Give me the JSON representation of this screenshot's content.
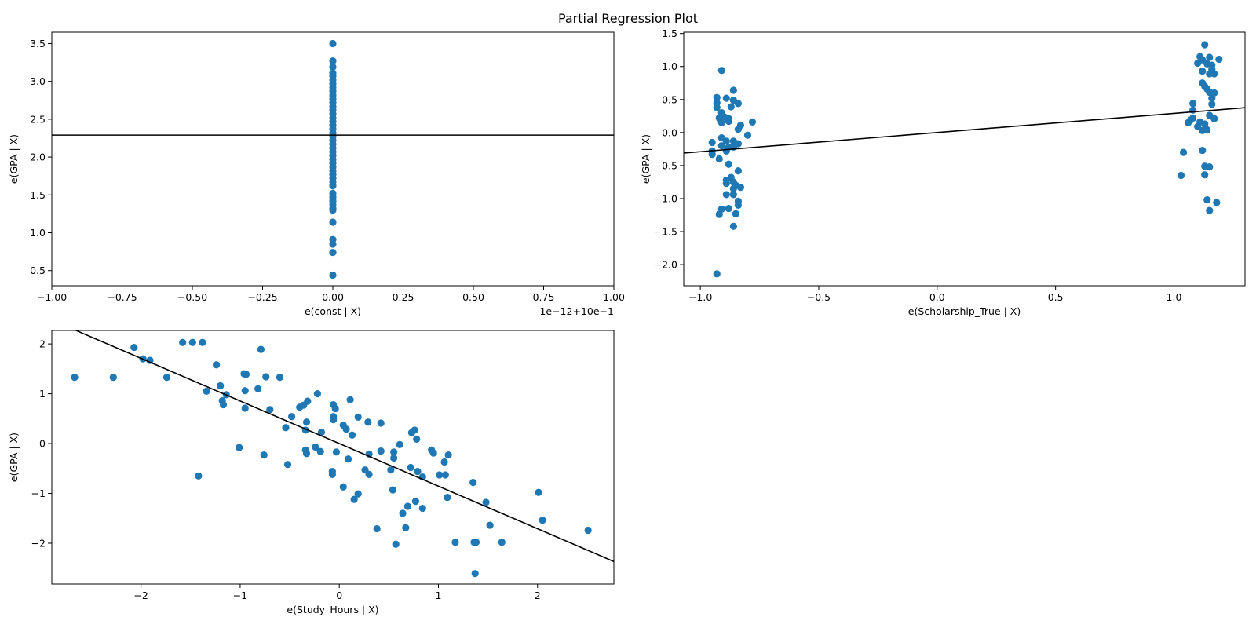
{
  "figure": {
    "title": "Partial Regression Plot"
  },
  "colors": {
    "point": "#1f77b4",
    "line": "#000000"
  },
  "chart_data": [
    {
      "type": "scatter",
      "xlabel": "e(const | X)",
      "ylabel": "e(GPA | X)",
      "offset_text": "1e−12+10e−1",
      "xlim": [
        -1.0,
        1.0
      ],
      "ylim": [
        0.3,
        3.65
      ],
      "xticks": [
        -1.0,
        -0.75,
        -0.5,
        -0.25,
        0.0,
        0.25,
        0.5,
        0.75,
        1.0
      ],
      "xticklabels": [
        "−1.00",
        "−0.75",
        "−0.50",
        "−0.25",
        "0.00",
        "0.25",
        "0.50",
        "0.75",
        "1.00"
      ],
      "yticks": [
        0.5,
        1.0,
        1.5,
        2.0,
        2.5,
        3.0,
        3.5
      ],
      "yticklabels": [
        "0.5",
        "1.0",
        "1.5",
        "2.0",
        "2.5",
        "3.0",
        "3.5"
      ],
      "fit_line": {
        "intercept": 2.29,
        "slope": 0.0
      },
      "points": [
        [
          0,
          3.5
        ],
        [
          0,
          3.27
        ],
        [
          0,
          3.19
        ],
        [
          0,
          3.11
        ],
        [
          0,
          3.07
        ],
        [
          0,
          3.02
        ],
        [
          0,
          2.97
        ],
        [
          0,
          2.92
        ],
        [
          0,
          2.87
        ],
        [
          0,
          2.82
        ],
        [
          0,
          2.77
        ],
        [
          0,
          2.72
        ],
        [
          0,
          2.67
        ],
        [
          0,
          2.62
        ],
        [
          0,
          2.57
        ],
        [
          0,
          2.52
        ],
        [
          0,
          2.47
        ],
        [
          0,
          2.42
        ],
        [
          0,
          2.37
        ],
        [
          0,
          2.32
        ],
        [
          0,
          2.27
        ],
        [
          0,
          2.22
        ],
        [
          0,
          2.17
        ],
        [
          0,
          2.12
        ],
        [
          0,
          2.07
        ],
        [
          0,
          2.02
        ],
        [
          0,
          1.97
        ],
        [
          0,
          1.92
        ],
        [
          0,
          1.87
        ],
        [
          0,
          1.82
        ],
        [
          0,
          1.77
        ],
        [
          0,
          1.72
        ],
        [
          0,
          1.67
        ],
        [
          0,
          1.62
        ],
        [
          0,
          1.52
        ],
        [
          0,
          1.47
        ],
        [
          0,
          1.42
        ],
        [
          0,
          1.37
        ],
        [
          0,
          1.32
        ],
        [
          0,
          1.3
        ],
        [
          0,
          1.14
        ],
        [
          0,
          0.91
        ],
        [
          0,
          0.85
        ],
        [
          0,
          0.74
        ],
        [
          0,
          0.44
        ]
      ]
    },
    {
      "type": "scatter",
      "xlabel": "e(Scholarship_True | X)",
      "ylabel": "e(GPA | X)",
      "xlim": [
        -1.07,
        1.3
      ],
      "ylim": [
        -2.32,
        1.52
      ],
      "xticks": [
        -1.0,
        -0.5,
        0.0,
        0.5,
        1.0
      ],
      "xticklabels": [
        "−1.0",
        "−0.5",
        "0.0",
        "0.5",
        "1.0"
      ],
      "yticks": [
        -2.0,
        -1.5,
        -1.0,
        -0.5,
        0.0,
        0.5,
        1.0,
        1.5
      ],
      "yticklabels": [
        "−2.0",
        "−1.5",
        "−1.0",
        "−0.5",
        "0.0",
        "0.5",
        "1.0",
        "1.5"
      ],
      "fit_line": {
        "intercept": 0.0,
        "slope": 0.29
      },
      "points": [
        [
          -0.91,
          0.94
        ],
        [
          -0.86,
          0.64
        ],
        [
          -0.93,
          0.53
        ],
        [
          -0.89,
          0.52
        ],
        [
          -0.86,
          0.49
        ],
        [
          -0.84,
          0.44
        ],
        [
          -0.93,
          0.45
        ],
        [
          -0.87,
          0.39
        ],
        [
          -0.93,
          0.38
        ],
        [
          -0.91,
          0.3
        ],
        [
          -0.92,
          0.22
        ],
        [
          -0.9,
          0.24
        ],
        [
          -0.88,
          0.21
        ],
        [
          -0.91,
          0.15
        ],
        [
          -0.88,
          0.17
        ],
        [
          -0.78,
          0.16
        ],
        [
          -0.83,
          0.11
        ],
        [
          -0.84,
          0.05
        ],
        [
          -0.8,
          -0.04
        ],
        [
          -0.91,
          -0.08
        ],
        [
          -0.89,
          -0.13
        ],
        [
          -0.86,
          -0.13
        ],
        [
          -0.95,
          -0.15
        ],
        [
          -0.84,
          -0.17
        ],
        [
          -0.91,
          -0.2
        ],
        [
          -0.88,
          -0.22
        ],
        [
          -0.86,
          -0.22
        ],
        [
          -0.89,
          -0.28
        ],
        [
          -0.95,
          -0.28
        ],
        [
          -0.95,
          -0.33
        ],
        [
          -0.92,
          -0.4
        ],
        [
          -0.88,
          -0.48
        ],
        [
          -0.84,
          -0.58
        ],
        [
          -0.87,
          -0.68
        ],
        [
          -0.89,
          -0.72
        ],
        [
          -0.86,
          -0.75
        ],
        [
          -0.89,
          -0.77
        ],
        [
          -0.85,
          -0.8
        ],
        [
          -0.83,
          -0.83
        ],
        [
          -0.86,
          -0.85
        ],
        [
          -0.89,
          -0.94
        ],
        [
          -0.86,
          -0.94
        ],
        [
          -0.84,
          -1.04
        ],
        [
          -0.84,
          -1.1
        ],
        [
          -0.88,
          -1.15
        ],
        [
          -0.91,
          -1.16
        ],
        [
          -0.92,
          -1.24
        ],
        [
          -0.85,
          -1.23
        ],
        [
          -0.86,
          -1.42
        ],
        [
          -0.93,
          -2.14
        ],
        [
          1.13,
          1.33
        ],
        [
          1.11,
          1.15
        ],
        [
          1.15,
          1.14
        ],
        [
          1.19,
          1.11
        ],
        [
          1.12,
          1.1
        ],
        [
          1.1,
          1.05
        ],
        [
          1.14,
          1.04
        ],
        [
          1.16,
          1.02
        ],
        [
          1.16,
          0.96
        ],
        [
          1.12,
          0.93
        ],
        [
          1.17,
          0.89
        ],
        [
          1.15,
          0.89
        ],
        [
          1.12,
          0.75
        ],
        [
          1.13,
          0.7
        ],
        [
          1.14,
          0.66
        ],
        [
          1.15,
          0.61
        ],
        [
          1.17,
          0.6
        ],
        [
          1.16,
          0.52
        ],
        [
          1.16,
          0.43
        ],
        [
          1.08,
          0.44
        ],
        [
          1.08,
          0.34
        ],
        [
          1.15,
          0.26
        ],
        [
          1.08,
          0.22
        ],
        [
          1.07,
          0.19
        ],
        [
          1.17,
          0.21
        ],
        [
          1.06,
          0.15
        ],
        [
          1.11,
          0.16
        ],
        [
          1.13,
          0.13
        ],
        [
          1.1,
          0.09
        ],
        [
          1.13,
          0.05
        ],
        [
          1.12,
          0.03
        ],
        [
          1.14,
          0.04
        ],
        [
          1.04,
          -0.3
        ],
        [
          1.12,
          -0.27
        ],
        [
          1.13,
          -0.51
        ],
        [
          1.15,
          -0.52
        ],
        [
          1.03,
          -0.65
        ],
        [
          1.13,
          -0.64
        ],
        [
          1.14,
          -1.02
        ],
        [
          1.18,
          -1.06
        ],
        [
          1.15,
          -1.18
        ]
      ]
    },
    {
      "type": "scatter",
      "xlabel": "e(Study_Hours | X)",
      "ylabel": "e(GPA | X)",
      "xlim": [
        -2.9,
        2.77
      ],
      "ylim": [
        -2.82,
        2.27
      ],
      "xticks": [
        -2,
        -1,
        0,
        1,
        2
      ],
      "xticklabels": [
        "−2",
        "−1",
        "0",
        "1",
        "2"
      ],
      "yticks": [
        -2,
        -1,
        0,
        1,
        2
      ],
      "yticklabels": [
        "−2",
        "−1",
        "0",
        "1",
        "2"
      ],
      "fit_line": {
        "intercept": 0.0,
        "slope": -0.855
      },
      "points": [
        [
          -2.67,
          1.33
        ],
        [
          -2.28,
          1.33
        ],
        [
          -2.07,
          1.93
        ],
        [
          -1.98,
          1.7
        ],
        [
          -1.91,
          1.67
        ],
        [
          -1.74,
          1.33
        ],
        [
          -1.58,
          2.03
        ],
        [
          -1.48,
          2.03
        ],
        [
          -1.38,
          2.03
        ],
        [
          -1.24,
          1.58
        ],
        [
          -1.2,
          1.16
        ],
        [
          -1.18,
          0.86
        ],
        [
          -1.17,
          0.78
        ],
        [
          -1.14,
          0.98
        ],
        [
          -1.34,
          1.05
        ],
        [
          -0.96,
          1.4
        ],
        [
          -0.94,
          1.39
        ],
        [
          -0.95,
          1.06
        ],
        [
          -0.95,
          0.71
        ],
        [
          -0.82,
          1.1
        ],
        [
          -0.79,
          1.89
        ],
        [
          -0.74,
          1.34
        ],
        [
          -0.7,
          0.68
        ],
        [
          -0.6,
          1.33
        ],
        [
          -0.54,
          0.32
        ],
        [
          -0.48,
          0.54
        ],
        [
          -0.4,
          0.73
        ],
        [
          -0.36,
          0.77
        ],
        [
          -0.33,
          0.43
        ],
        [
          -0.32,
          0.85
        ],
        [
          -0.34,
          0.27
        ],
        [
          -0.22,
          1.0
        ],
        [
          -0.18,
          0.23
        ],
        [
          -0.34,
          -0.13
        ],
        [
          -0.33,
          -0.2
        ],
        [
          -0.24,
          -0.07
        ],
        [
          -0.19,
          -0.16
        ],
        [
          -0.06,
          0.54
        ],
        [
          -0.06,
          0.78
        ],
        [
          -0.04,
          0.7
        ],
        [
          -0.06,
          0.48
        ],
        [
          -0.03,
          -0.17
        ],
        [
          -0.07,
          -0.56
        ],
        [
          -0.07,
          -0.62
        ],
        [
          0.04,
          0.37
        ],
        [
          0.07,
          0.29
        ],
        [
          0.11,
          0.88
        ],
        [
          0.13,
          0.17
        ],
        [
          0.19,
          0.53
        ],
        [
          0.29,
          0.43
        ],
        [
          0.09,
          -0.31
        ],
        [
          0.04,
          -0.87
        ],
        [
          0.19,
          -1.01
        ],
        [
          0.15,
          -1.12
        ],
        [
          0.26,
          -0.53
        ],
        [
          0.3,
          -0.62
        ],
        [
          0.3,
          -0.21
        ],
        [
          0.42,
          -0.15
        ],
        [
          0.42,
          0.41
        ],
        [
          0.52,
          -0.53
        ],
        [
          0.55,
          -0.17
        ],
        [
          0.55,
          -0.29
        ],
        [
          0.54,
          -0.93
        ],
        [
          0.61,
          -0.02
        ],
        [
          0.64,
          -1.4
        ],
        [
          0.67,
          -1.69
        ],
        [
          0.69,
          -1.26
        ],
        [
          0.72,
          -0.48
        ],
        [
          0.73,
          0.22
        ],
        [
          0.76,
          0.27
        ],
        [
          0.78,
          0.09
        ],
        [
          0.77,
          -1.16
        ],
        [
          0.79,
          -0.56
        ],
        [
          0.84,
          -0.67
        ],
        [
          0.84,
          -1.3
        ],
        [
          0.38,
          -1.71
        ],
        [
          0.57,
          -2.02
        ],
        [
          0.93,
          -0.13
        ],
        [
          0.95,
          -0.19
        ],
        [
          1.01,
          -0.63
        ],
        [
          1.06,
          -0.37
        ],
        [
          1.07,
          -0.63
        ],
        [
          1.1,
          -0.23
        ],
        [
          1.09,
          -1.08
        ],
        [
          1.17,
          -1.98
        ],
        [
          1.35,
          -0.78
        ],
        [
          1.36,
          -1.98
        ],
        [
          1.38,
          -1.98
        ],
        [
          1.37,
          -2.61
        ],
        [
          1.48,
          -1.18
        ],
        [
          1.52,
          -1.64
        ],
        [
          1.64,
          -1.98
        ],
        [
          2.01,
          -0.98
        ],
        [
          2.05,
          -1.54
        ],
        [
          2.51,
          -1.74
        ],
        [
          -0.76,
          -0.23
        ],
        [
          -0.52,
          -0.42
        ],
        [
          -1.01,
          -0.08
        ],
        [
          -1.42,
          -0.65
        ]
      ]
    }
  ]
}
